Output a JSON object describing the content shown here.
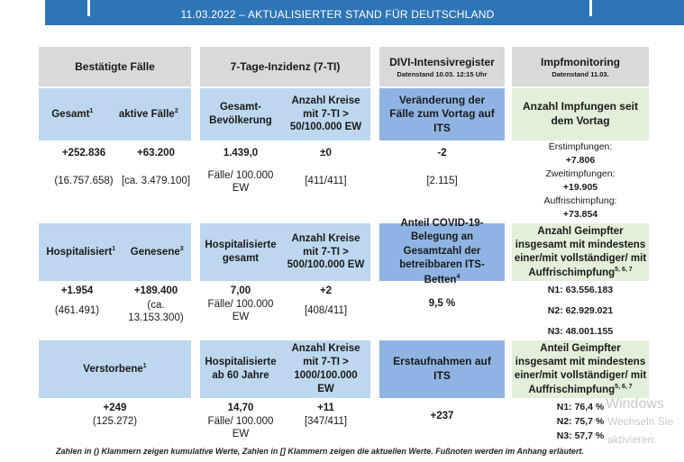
{
  "banner": {
    "title": "11.03.2022 – AKTUALISIERTER STAND FÜR DEUTSCHLAND"
  },
  "sections": {
    "faelle": {
      "title": "Bestätigte Fälle"
    },
    "inzidenz": {
      "title": "7-Tage-Inzidenz (7-TI)"
    },
    "divi": {
      "title": "DIVI-Intensivregister",
      "subtitle": "Datenstand 10.03. 12:15 Uhr"
    },
    "impf": {
      "title": "Impfmonitoring",
      "subtitle": "Datenstand 11.03."
    }
  },
  "row1": {
    "gesamt_label": "Gesamt",
    "gesamt_fn": "1",
    "aktive_label": "aktive Fälle",
    "aktive_fn": "2",
    "gesamt_change": "+252.836",
    "gesamt_total": "(16.757.658)",
    "aktive_change": "+63.200",
    "aktive_total": "[ca. 3.479.100]",
    "inz_label": "Gesamt-Bevölkerung",
    "kreise_label": "Anzahl Kreise mit 7-TI > 50/100.000 EW",
    "inz_value": "1.439,0",
    "inz_unit": "Fälle/ 100.000 EW",
    "kreise_change": "±0",
    "kreise_total": "[411/411]",
    "divi_label": "Veränderung der Fälle zum Vortag auf ITS",
    "divi_change": "-2",
    "divi_total": "[2.115]",
    "impf_label": "Anzahl Impfungen seit dem Vortag",
    "erst_label": "Erstimpfungen:",
    "erst_value": "+7.806",
    "zweit_label": "Zweitimpfungen:",
    "zweit_value": "+19.905",
    "auffr_label": "Auffrischimpfung:",
    "auffr_value": "+73.854"
  },
  "row2": {
    "hosp_label": "Hospitalisiert",
    "hosp_fn": "1",
    "genesen_label": "Genesene",
    "genesen_fn": "3",
    "hosp_change": "+1.954",
    "hosp_total": "(461.491)",
    "genesen_change": "+189.400",
    "genesen_total": "(ca. 13.153.300)",
    "hosp_inz_label": "Hospitalisierte gesamt",
    "kreise_label": "Anzahl Kreise mit 7-TI > 500/100.000 EW",
    "hosp_inz_value": "7,00",
    "hosp_inz_unit": "Fälle/ 100.000 EW",
    "kreise_change": "+2",
    "kreise_total": "[408/411]",
    "divi_label": "Anteil COVID-19-Belegung an Gesamtzahl der betreibbaren ITS-Betten",
    "divi_fn": "4",
    "divi_value": "9,5 %",
    "impf_label": "Anzahl Geimpfter insgesamt mit mindestens einer/mit vollständiger/ mit Auffrischimpfung",
    "impf_fn": "5, 6, 7",
    "n1": "N1: 63.556.183",
    "n2": "N2: 62.929.021",
    "n3": "N3: 48.001.155"
  },
  "row3": {
    "verst_label": "Verstorbene",
    "verst_fn": "1",
    "verst_change": "+249",
    "verst_total": "(125.272)",
    "hosp60_label": "Hospitalisierte ab 60 Jahre",
    "kreise_label": "Anzahl Kreise mit 7-TI > 1000/100.000 EW",
    "hosp60_value": "14,70",
    "hosp60_unit": "Fälle/ 100.000 EW",
    "kreise_change": "+11",
    "kreise_total": "[347/411]",
    "divi_label": "Erstaufnahmen auf ITS",
    "divi_change": "+237",
    "impf_label": "Anteil Geimpfter insgesamt mit mindestens einer/mit vollständiger/ mit Auffrischimpfung",
    "impf_fn": "5, 6, 7",
    "n1": "N1: 76,4 %",
    "n2": "N2: 75,7 %",
    "n3": "N3: 57,7 %"
  },
  "footer": "Zahlen in () Klammern zeigen kumulative Werte, Zahlen in [] Klammern zeigen die aktuellen Werte. Fußnoten werden im Anhang erläutert.",
  "watermark": {
    "line1": "Windows",
    "line2": "Wechseln Sie",
    "line3": "aktivieren."
  }
}
